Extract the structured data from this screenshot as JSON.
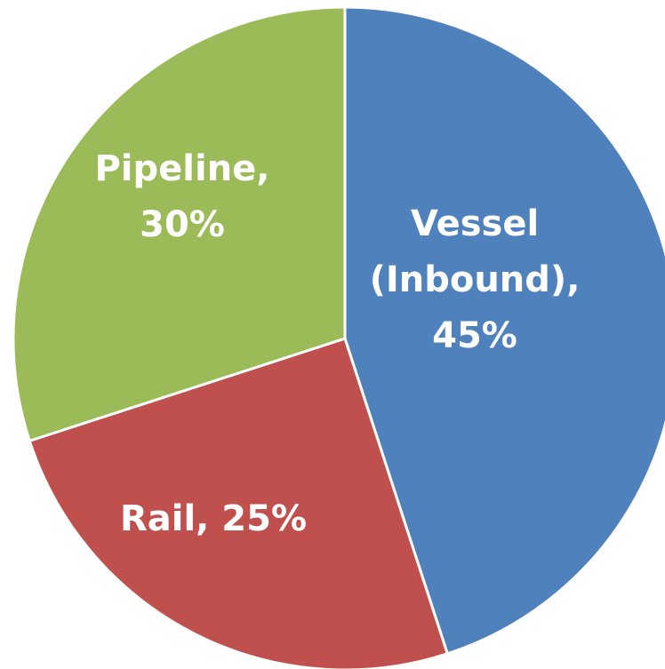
{
  "chart_data": {
    "type": "pie",
    "title": "",
    "slices": [
      {
        "label_lines": [
          "Vessel",
          "(Inbound),",
          "45%"
        ],
        "category": "Vessel (Inbound)",
        "value": 45,
        "color": "#4F81BD"
      },
      {
        "label_lines": [
          "Rail, 25%"
        ],
        "category": "Rail",
        "value": 25,
        "color": "#C0504D"
      },
      {
        "label_lines": [
          "Pipeline,",
          "30%"
        ],
        "category": "Pipeline",
        "value": 30,
        "color": "#9BBB59"
      }
    ],
    "start_angle_deg": 0,
    "direction": "clockwise"
  }
}
